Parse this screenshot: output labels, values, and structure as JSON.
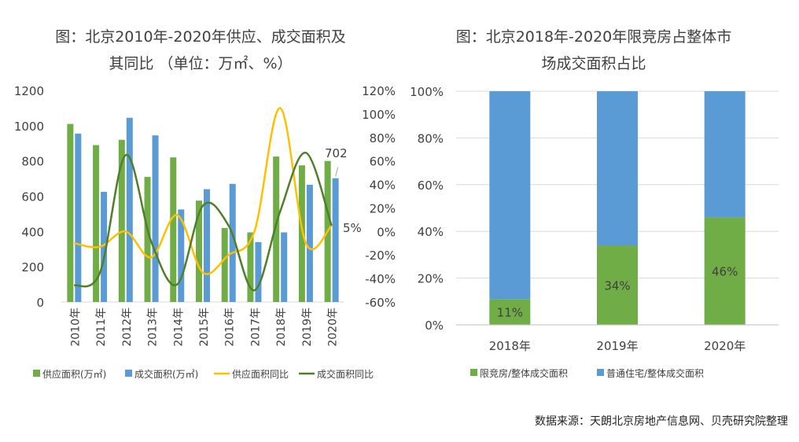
{
  "chart_data": [
    {
      "type": "bar+line",
      "title_line1": "图：北京2010年-2020年供应、成交面积及",
      "title_line2": "其同比 （单位：万㎡、%）",
      "categories": [
        "2010年",
        "2011年",
        "2012年",
        "2013年",
        "2014年",
        "2015年",
        "2016年",
        "2017年",
        "2018年",
        "2019年",
        "2020年"
      ],
      "ylim_left": [
        0,
        1200
      ],
      "yticks_left": [
        "0",
        "200",
        "400",
        "600",
        "800",
        "1000",
        "1200"
      ],
      "ylim_right": [
        -60,
        120
      ],
      "yticks_right": [
        "-60%",
        "-40%",
        "-20%",
        "0%",
        "20%",
        "40%",
        "60%",
        "80%",
        "100%",
        "120%"
      ],
      "series": [
        {
          "name": "供应面积(万㎡)",
          "kind": "bar",
          "color": "#70ad47",
          "values": [
            1010,
            890,
            920,
            710,
            820,
            575,
            420,
            395,
            825,
            775,
            800
          ]
        },
        {
          "name": "成交面积(万㎡)",
          "kind": "bar",
          "color": "#5b9bd5",
          "values": [
            955,
            625,
            1045,
            945,
            525,
            640,
            670,
            340,
            395,
            665,
            702
          ]
        },
        {
          "name": "供应面积同比",
          "kind": "line",
          "color": "#ffc000",
          "values": [
            -10,
            -13,
            0,
            -22,
            14,
            -35,
            -20,
            0,
            105,
            -10,
            5
          ]
        },
        {
          "name": "成交面积同比",
          "kind": "line",
          "color": "#4f7f29",
          "values": [
            -46,
            -35,
            65,
            -9,
            -45,
            22,
            5,
            -50,
            17,
            67,
            5
          ]
        }
      ],
      "annotations": [
        {
          "text": "702",
          "series": "成交面积(万㎡)",
          "category": "2020年"
        },
        {
          "text": "5%",
          "series": "供应面积同比",
          "category": "2020年"
        }
      ]
    },
    {
      "type": "stacked-bar",
      "title_line1": "图：北京2018年-2020年限竞房占整体市",
      "title_line2": "场成交面积占比",
      "categories": [
        "2018年",
        "2019年",
        "2020年"
      ],
      "ylim": [
        0,
        100
      ],
      "yticks": [
        "0%",
        "20%",
        "40%",
        "60%",
        "80%",
        "100%"
      ],
      "series": [
        {
          "name": "限竞房/整体成交面积",
          "color": "#70ad47",
          "values": [
            11,
            34,
            46
          ],
          "labels": [
            "11%",
            "34%",
            "46%"
          ]
        },
        {
          "name": "普通住宅/整体成交面积",
          "color": "#5b9bd5",
          "values": [
            89,
            66,
            54
          ]
        }
      ]
    }
  ],
  "source": "数据来源：天朗北京房地产信息网、贝壳研究院整理"
}
